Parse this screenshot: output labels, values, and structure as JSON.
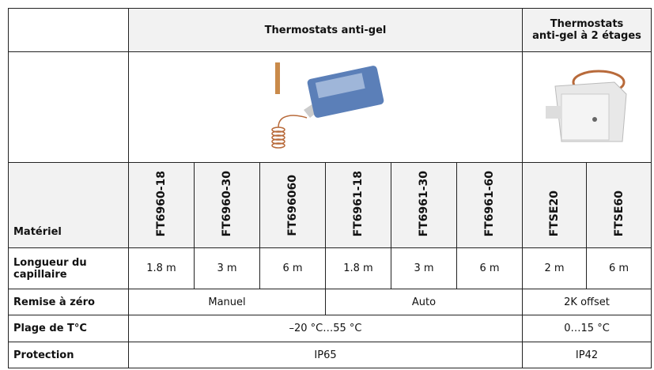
{
  "table": {
    "groups": [
      "Thermostats anti-gel",
      "Thermostats\nanti-gel à 2 étages"
    ],
    "row_header": "Matériel",
    "models": [
      "FT6960-18",
      "FT6960-30",
      "FT696060",
      "FT6961-18",
      "FT6961-30",
      "FT6961-60",
      "FTSE20",
      "FTSE60"
    ],
    "rows": [
      {
        "label": "Longueur du capillaire",
        "cells": [
          "1.8 m",
          "3 m",
          "6 m",
          "1.8 m",
          "3 m",
          "6 m",
          "2 m",
          "6 m"
        ]
      },
      {
        "label": "Remise à zéro",
        "cells": [
          "Manuel",
          "Auto",
          "2K offset"
        ]
      },
      {
        "label": "Plage de T°C",
        "cells": [
          "–20 °C…55 °C",
          "0…15 °C"
        ]
      },
      {
        "label": "Protection",
        "cells": [
          "IP65",
          "IP42"
        ]
      }
    ]
  }
}
